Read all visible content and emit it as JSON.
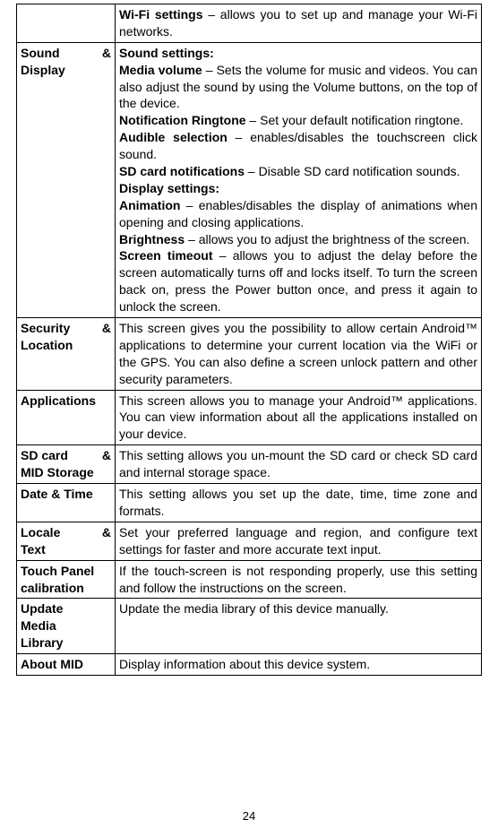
{
  "rows": [
    {
      "label_parts": [
        ""
      ],
      "desc_parts": [
        {
          "b": true,
          "t": "Wi-Fi settings"
        },
        {
          "b": false,
          "t": " – allows you to set up and manage your Wi-Fi networks."
        }
      ]
    },
    {
      "label_parts": [
        "Sound",
        "&",
        "Display"
      ],
      "desc_parts": [
        {
          "b": true,
          "t": "Sound settings:"
        },
        {
          "br": true
        },
        {
          "b": true,
          "t": "Media volume"
        },
        {
          "b": false,
          "t": " – Sets the volume for music and videos. You can also adjust the sound by using the Volume buttons, on the top of the device."
        },
        {
          "br": true
        },
        {
          "b": true,
          "t": "Notification Ringtone"
        },
        {
          "b": false,
          "t": " – Set your default notification ringtone."
        },
        {
          "br": true
        },
        {
          "b": true,
          "t": "Audible selection"
        },
        {
          "b": false,
          "t": " – enables/disables the touchscreen click sound."
        },
        {
          "br": true
        },
        {
          "b": true,
          "t": "SD card notifications"
        },
        {
          "b": false,
          "t": " – Disable SD card notification sounds."
        },
        {
          "br": true
        },
        {
          "b": true,
          "t": "Display settings:"
        },
        {
          "br": true
        },
        {
          "b": true,
          "t": "Animation"
        },
        {
          "b": false,
          "t": " – enables/disables the display of animations when opening and closing applications."
        },
        {
          "br": true
        },
        {
          "b": true,
          "t": "Brightness"
        },
        {
          "b": false,
          "t": " – allows you to adjust the brightness of the screen."
        },
        {
          "br": true
        },
        {
          "b": true,
          "t": "Screen timeout"
        },
        {
          "b": false,
          "t": " – allows you to adjust the delay before the screen automatically turns off and locks itself. To turn the screen back on, press the Power button once, and press it again to unlock the screen."
        }
      ]
    },
    {
      "label_parts": [
        "Security",
        "&",
        "Location"
      ],
      "desc_parts": [
        {
          "b": false,
          "t": "This screen gives you the possibility to allow certain Android™ applications to determine your current location via the WiFi or the GPS. You can also define a screen unlock pattern and other security parameters."
        }
      ]
    },
    {
      "label_parts": [
        "Applications"
      ],
      "desc_parts": [
        {
          "b": false,
          "t": "This screen allows you to manage your Android™ applications. You can view information about all the applications installed on your device."
        }
      ]
    },
    {
      "label_parts": [
        "SD",
        "card",
        "&",
        "MID Storage"
      ],
      "desc_parts": [
        {
          "b": false,
          "t": "This setting allows you un-mount the SD card or check SD card and internal storage space."
        }
      ]
    },
    {
      "label_parts": [
        "Date & Time"
      ],
      "desc_parts": [
        {
          "b": false,
          "t": "This setting allows you set up the date, time, time zone and formats."
        }
      ]
    },
    {
      "label_parts": [
        "Locale",
        "&",
        "Text"
      ],
      "desc_parts": [
        {
          "b": false,
          "t": "Set your preferred language and region, and configure text settings for faster and more accurate text input."
        }
      ]
    },
    {
      "label_parts": [
        "Touch Panel",
        "calibration"
      ],
      "desc_parts": [
        {
          "b": false,
          "t": "If the touch-screen is not responding properly, use this setting and follow the instructions on the screen."
        }
      ]
    },
    {
      "label_parts": [
        "Update",
        "Media",
        "Library"
      ],
      "desc_parts": [
        {
          "b": false,
          "t": "Update the media library of this device manually."
        }
      ]
    },
    {
      "label_parts": [
        "About MID"
      ],
      "desc_parts": [
        {
          "b": false,
          "t": "Display information about this device system."
        }
      ]
    }
  ],
  "page_number": "24"
}
